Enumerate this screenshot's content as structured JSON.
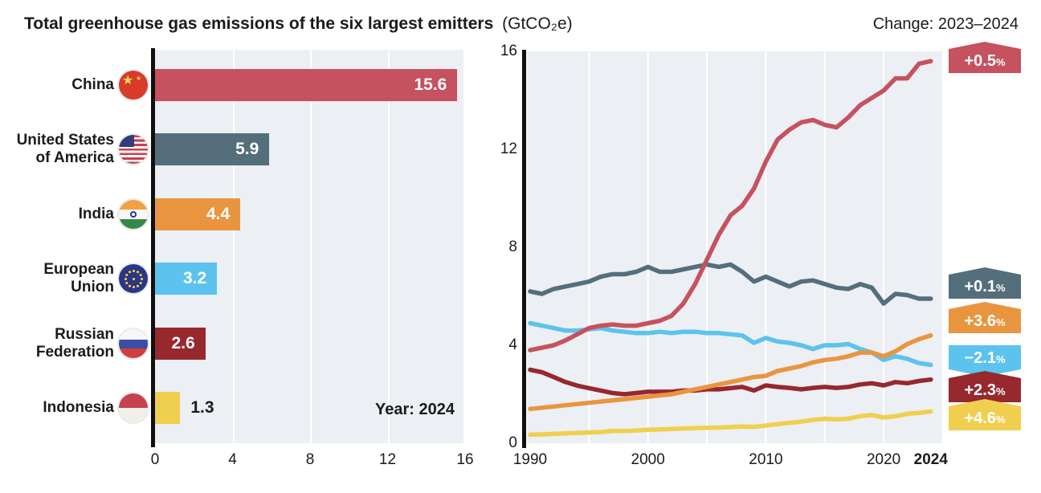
{
  "header": {
    "change_label": "Change: 2023–2024"
  },
  "chart_data": [
    {
      "type": "bar",
      "title": "Total greenhouse gas emissions of the six largest emitters",
      "unit": "(GtCO₂e)",
      "year_note": "Year: 2024",
      "xlabel": "",
      "ylabel": "",
      "xlim": [
        0,
        16
      ],
      "xticks": [
        "0",
        "4",
        "8",
        "12",
        "16"
      ],
      "grid": true,
      "background": "#ECEFF3",
      "categories": [
        "China",
        "United States of America",
        "India",
        "European Union",
        "Russian Federation",
        "Indonesia"
      ],
      "label_lines": [
        [
          "China"
        ],
        [
          "United States",
          "of America"
        ],
        [
          "India"
        ],
        [
          "European",
          "Union"
        ],
        [
          "Russian",
          "Federation"
        ],
        [
          "Indonesia"
        ]
      ],
      "ids": [
        "china",
        "usa",
        "india",
        "eu",
        "russia",
        "indonesia"
      ],
      "flags": [
        "china-flag",
        "usa-flag",
        "india-flag",
        "eu-flag",
        "russia-flag",
        "indonesia-flag"
      ],
      "values": [
        15.6,
        5.9,
        4.4,
        3.2,
        2.6,
        1.3
      ],
      "value_labels": [
        "15.6",
        "5.9",
        "4.4",
        "3.2",
        "2.6",
        "1.3"
      ],
      "value_inside": [
        true,
        true,
        true,
        true,
        true,
        false
      ],
      "colors": [
        "#C6515F",
        "#546E7C",
        "#E9953F",
        "#5CC3EE",
        "#96282E",
        "#F0CF4F"
      ]
    },
    {
      "type": "line",
      "change_label": "Change: 2023–2024",
      "x_start": 1990,
      "x_end": 2024,
      "xticks": [
        "1990",
        "2000",
        "2010",
        "2020",
        "2024"
      ],
      "xtick_years": [
        1990,
        2000,
        2010,
        2020,
        2024
      ],
      "yticks": [
        0,
        4,
        8,
        12,
        16
      ],
      "ylim": [
        0,
        16
      ],
      "gridline_years": [
        1995,
        2000,
        2005,
        2010,
        2015,
        2020
      ],
      "legend_position": "right-badges",
      "pct_symbol": "%",
      "series": [
        {
          "name": "China",
          "id": "china",
          "color": "#C6515F",
          "change": "+0.5",
          "dir": "up",
          "values": [
            3.8,
            3.9,
            4.0,
            4.2,
            4.45,
            4.7,
            4.8,
            4.85,
            4.8,
            4.8,
            4.9,
            5.0,
            5.2,
            5.7,
            6.5,
            7.5,
            8.5,
            9.3,
            9.7,
            10.4,
            11.5,
            12.4,
            12.8,
            13.1,
            13.2,
            13.0,
            12.9,
            13.3,
            13.8,
            14.1,
            14.4,
            14.9,
            14.9,
            15.5,
            15.6
          ]
        },
        {
          "name": "United States of America",
          "id": "usa",
          "color": "#546E7C",
          "change": "+0.1",
          "dir": "up",
          "values": [
            6.2,
            6.1,
            6.3,
            6.4,
            6.5,
            6.6,
            6.8,
            6.9,
            6.9,
            7.0,
            7.2,
            7.0,
            7.0,
            7.1,
            7.2,
            7.3,
            7.2,
            7.3,
            7.0,
            6.6,
            6.8,
            6.6,
            6.4,
            6.6,
            6.65,
            6.5,
            6.35,
            6.3,
            6.5,
            6.35,
            5.7,
            6.1,
            6.05,
            5.9,
            5.9
          ]
        },
        {
          "name": "India",
          "id": "india",
          "color": "#E9953F",
          "change": "+3.6",
          "dir": "up",
          "values": [
            1.4,
            1.45,
            1.5,
            1.55,
            1.6,
            1.65,
            1.7,
            1.75,
            1.8,
            1.85,
            1.9,
            1.95,
            2.0,
            2.1,
            2.2,
            2.3,
            2.4,
            2.5,
            2.6,
            2.7,
            2.75,
            2.95,
            3.05,
            3.15,
            3.3,
            3.4,
            3.45,
            3.55,
            3.7,
            3.7,
            3.55,
            3.75,
            4.05,
            4.25,
            4.4
          ]
        },
        {
          "name": "European Union",
          "id": "eu",
          "color": "#5CC3EE",
          "change": "−2.1",
          "dir": "down",
          "values": [
            4.9,
            4.8,
            4.7,
            4.6,
            4.6,
            4.65,
            4.7,
            4.6,
            4.55,
            4.5,
            4.5,
            4.55,
            4.5,
            4.55,
            4.55,
            4.5,
            4.5,
            4.45,
            4.4,
            4.1,
            4.3,
            4.15,
            4.1,
            4.0,
            3.85,
            4.0,
            4.0,
            4.05,
            3.85,
            3.7,
            3.4,
            3.55,
            3.45,
            3.27,
            3.2
          ]
        },
        {
          "name": "Russian Federation",
          "id": "russia",
          "color": "#96282E",
          "change": "+2.3",
          "dir": "up",
          "values": [
            3.0,
            2.9,
            2.7,
            2.5,
            2.35,
            2.25,
            2.15,
            2.05,
            2.0,
            2.05,
            2.1,
            2.1,
            2.1,
            2.15,
            2.15,
            2.2,
            2.2,
            2.25,
            2.3,
            2.15,
            2.36,
            2.3,
            2.26,
            2.2,
            2.26,
            2.3,
            2.26,
            2.3,
            2.4,
            2.45,
            2.36,
            2.5,
            2.45,
            2.54,
            2.6
          ]
        },
        {
          "name": "Indonesia",
          "id": "indonesia",
          "color": "#F0CF4F",
          "change": "+4.6",
          "dir": "up",
          "values": [
            0.35,
            0.36,
            0.38,
            0.4,
            0.42,
            0.44,
            0.46,
            0.5,
            0.5,
            0.52,
            0.55,
            0.56,
            0.58,
            0.6,
            0.62,
            0.63,
            0.64,
            0.66,
            0.68,
            0.67,
            0.72,
            0.78,
            0.83,
            0.88,
            0.95,
            1.0,
            0.97,
            1.0,
            1.1,
            1.15,
            1.05,
            1.1,
            1.2,
            1.24,
            1.3
          ]
        }
      ]
    }
  ]
}
